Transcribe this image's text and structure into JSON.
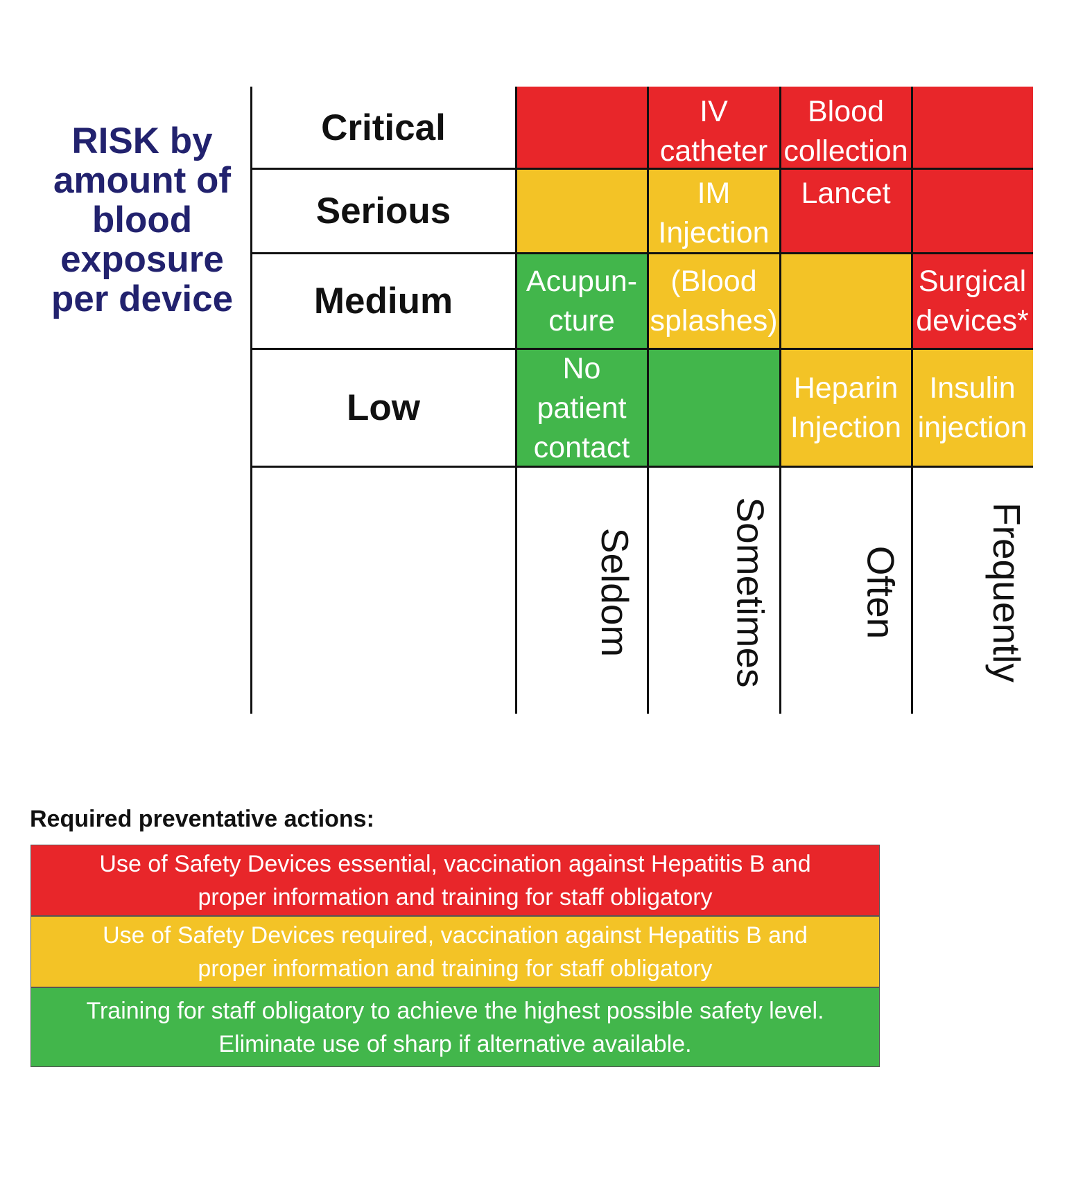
{
  "y_axis_title": [
    "RISK by",
    "amount of",
    "blood",
    "exposure",
    "per device"
  ],
  "rows": [
    {
      "label": "Critical",
      "cells": [
        {
          "color": "#e8262a",
          "lines": []
        },
        {
          "color": "#e8262a",
          "lines": [
            "IV",
            "catheter"
          ]
        },
        {
          "color": "#e8262a",
          "lines": [
            "Blood",
            "collection"
          ]
        },
        {
          "color": "#e8262a",
          "lines": []
        }
      ]
    },
    {
      "label": "Serious",
      "cells": [
        {
          "color": "#f3c326",
          "lines": []
        },
        {
          "color": "#f3c326",
          "lines": [
            "IM",
            "Injection"
          ]
        },
        {
          "color": "#e8262a",
          "lines": [
            "Lancet"
          ]
        },
        {
          "color": "#e8262a",
          "lines": []
        }
      ]
    },
    {
      "label": "Medium",
      "cells": [
        {
          "color": "#42b64b",
          "lines": [
            "Acupun-",
            "cture"
          ]
        },
        {
          "color": "#f3c326",
          "lines": [
            "(Blood",
            "splashes)"
          ]
        },
        {
          "color": "#f3c326",
          "lines": []
        },
        {
          "color": "#e8262a",
          "lines": [
            "Surgical",
            "devices*"
          ]
        }
      ]
    },
    {
      "label": "Low",
      "cells": [
        {
          "color": "#42b64b",
          "lines": [
            "No",
            "patient",
            "contact"
          ]
        },
        {
          "color": "#42b64b",
          "lines": []
        },
        {
          "color": "#f3c326",
          "lines": [
            "Heparin",
            "Injection"
          ]
        },
        {
          "color": "#f3c326",
          "lines": [
            "Insulin",
            "injection"
          ]
        }
      ]
    }
  ],
  "columns": [
    "Seldom",
    "Sometimes",
    "Often",
    "Frequently"
  ],
  "legend": {
    "title": "Required preventative actions:",
    "items": [
      {
        "color": "#e8262a",
        "lines": [
          "Use of Safety Devices essential, vaccination against Hepatitis B and",
          "proper information and training for staff obligatory"
        ]
      },
      {
        "color": "#f3c326",
        "lines": [
          "Use of Safety Devices required, vaccination against Hepatitis B and",
          "proper information and training for staff obligatory"
        ]
      },
      {
        "color": "#42b64b",
        "lines": [
          "Training for staff obligatory to achieve the highest possible safety level.",
          "Eliminate use of sharp if alternative available."
        ]
      }
    ]
  }
}
